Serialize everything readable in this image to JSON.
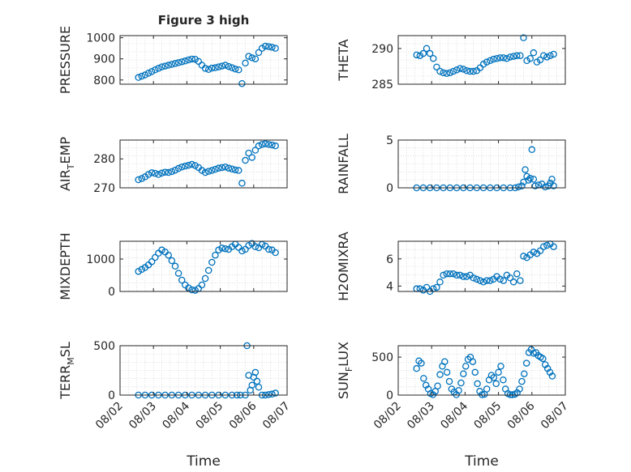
{
  "title": "Figure 3 high",
  "x_axis_label": "Time",
  "x_ticks": [
    "08/02",
    "08/03",
    "08/04",
    "08/05",
    "08/06",
    "08/07"
  ],
  "marker_color": "#0072BD",
  "chart_data": [
    {
      "type": "scatter",
      "ylabel": "PRESSURE",
      "ylim": [
        780,
        1010
      ],
      "yticks": [
        800,
        900,
        1000
      ],
      "x": [
        2.55,
        2.65,
        2.75,
        2.85,
        2.95,
        3.05,
        3.15,
        3.25,
        3.35,
        3.45,
        3.55,
        3.65,
        3.75,
        3.85,
        3.95,
        4.05,
        4.15,
        4.25,
        4.35,
        4.45,
        4.55,
        4.65,
        4.75,
        4.85,
        4.95,
        5.05,
        5.15,
        5.25,
        5.35,
        5.45,
        5.55,
        5.65,
        5.75,
        5.85,
        5.95,
        6.05,
        6.15,
        6.25,
        6.35,
        6.45,
        6.55,
        6.65
      ],
      "y": [
        812,
        818,
        824,
        832,
        840,
        848,
        855,
        862,
        866,
        870,
        874,
        878,
        882,
        886,
        890,
        895,
        899,
        898,
        888,
        870,
        855,
        850,
        856,
        858,
        862,
        866,
        870,
        864,
        858,
        852,
        848,
        783,
        880,
        912,
        905,
        900,
        930,
        950,
        960,
        958,
        955,
        950
      ]
    },
    {
      "type": "scatter",
      "ylabel": "THETA",
      "ylim": [
        285,
        291.8
      ],
      "yticks": [
        285,
        290
      ],
      "x": [
        2.55,
        2.65,
        2.75,
        2.85,
        2.95,
        3.05,
        3.15,
        3.25,
        3.35,
        3.45,
        3.55,
        3.65,
        3.75,
        3.85,
        3.95,
        4.05,
        4.15,
        4.25,
        4.35,
        4.45,
        4.55,
        4.65,
        4.75,
        4.85,
        4.95,
        5.05,
        5.15,
        5.25,
        5.35,
        5.45,
        5.55,
        5.65,
        5.75,
        5.85,
        5.95,
        6.05,
        6.15,
        6.25,
        6.35,
        6.45,
        6.55,
        6.65
      ],
      "y": [
        289.1,
        289.0,
        289.3,
        290.0,
        289.3,
        288.6,
        287.4,
        286.8,
        286.6,
        286.5,
        286.6,
        286.8,
        287.0,
        287.2,
        287.1,
        286.9,
        286.8,
        286.8,
        286.9,
        287.3,
        287.8,
        288.1,
        288.3,
        288.5,
        288.6,
        288.7,
        288.7,
        288.6,
        288.8,
        288.9,
        289.0,
        289.0,
        291.5,
        288.3,
        288.6,
        289.4,
        288.1,
        288.4,
        289.0,
        288.8,
        289.0,
        289.2
      ]
    },
    {
      "type": "scatter",
      "ylabel": "AIR_TEMP",
      "ylim": [
        270,
        286.5
      ],
      "yticks": [
        270,
        280
      ],
      "x": [
        2.55,
        2.65,
        2.75,
        2.85,
        2.95,
        3.05,
        3.15,
        3.25,
        3.35,
        3.45,
        3.55,
        3.65,
        3.75,
        3.85,
        3.95,
        4.05,
        4.15,
        4.25,
        4.35,
        4.45,
        4.55,
        4.65,
        4.75,
        4.85,
        4.95,
        5.05,
        5.15,
        5.25,
        5.35,
        5.45,
        5.55,
        5.65,
        5.75,
        5.85,
        5.95,
        6.05,
        6.15,
        6.25,
        6.35,
        6.45,
        6.55,
        6.65
      ],
      "y": [
        272.8,
        273.2,
        273.8,
        274.6,
        275.2,
        275.0,
        274.6,
        275.1,
        275.4,
        275.3,
        275.6,
        276.1,
        276.7,
        277.2,
        277.5,
        277.8,
        278.1,
        277.7,
        277.0,
        276.0,
        275.3,
        275.7,
        276.0,
        276.4,
        276.8,
        277.0,
        277.2,
        276.8,
        276.5,
        276.2,
        276.0,
        271.6,
        279.5,
        282.0,
        280.5,
        283.0,
        284.5,
        285.0,
        285.2,
        285.0,
        284.8,
        284.5
      ]
    },
    {
      "type": "scatter",
      "ylabel": "RAINFALL",
      "ylim": [
        0,
        5
      ],
      "yticks": [
        0,
        5
      ],
      "x": [
        2.55,
        2.75,
        2.95,
        3.15,
        3.35,
        3.55,
        3.75,
        3.95,
        4.15,
        4.35,
        4.55,
        4.75,
        4.95,
        5.15,
        5.35,
        5.5,
        5.6,
        5.7,
        5.75,
        5.8,
        5.85,
        5.9,
        5.95,
        6.0,
        6.05,
        6.1,
        6.2,
        6.3,
        6.4,
        6.5,
        6.55,
        6.6,
        6.65
      ],
      "y": [
        0,
        0,
        0,
        0,
        0,
        0,
        0,
        0,
        0,
        0,
        0,
        0,
        0,
        0,
        0,
        0,
        0.1,
        0.2,
        0.6,
        1.9,
        1.2,
        0.8,
        1.0,
        4.0,
        0.9,
        0.2,
        0.3,
        0.4,
        0.1,
        0.2,
        0.5,
        0.9,
        0.2
      ]
    },
    {
      "type": "scatter",
      "ylabel": "MIXDEPTH",
      "ylim": [
        0,
        1550
      ],
      "yticks": [
        0,
        1000
      ],
      "x": [
        2.55,
        2.65,
        2.75,
        2.85,
        2.95,
        3.05,
        3.15,
        3.25,
        3.35,
        3.45,
        3.55,
        3.65,
        3.75,
        3.85,
        3.95,
        4.05,
        4.15,
        4.25,
        4.35,
        4.45,
        4.55,
        4.65,
        4.75,
        4.85,
        4.95,
        5.05,
        5.15,
        5.25,
        5.35,
        5.45,
        5.55,
        5.65,
        5.75,
        5.85,
        5.95,
        6.05,
        6.15,
        6.25,
        6.35,
        6.45,
        6.55,
        6.65
      ],
      "y": [
        620,
        680,
        740,
        820,
        920,
        1050,
        1180,
        1280,
        1220,
        1120,
        950,
        780,
        560,
        350,
        200,
        110,
        50,
        35,
        90,
        200,
        400,
        650,
        900,
        1120,
        1280,
        1340,
        1320,
        1300,
        1380,
        1460,
        1360,
        1250,
        1300,
        1420,
        1480,
        1380,
        1350,
        1450,
        1400,
        1300,
        1280,
        1200
      ]
    },
    {
      "type": "scatter",
      "ylabel": "H2OMIXRA",
      "ylim": [
        3.6,
        7.3
      ],
      "yticks": [
        4,
        6
      ],
      "x": [
        2.55,
        2.65,
        2.75,
        2.85,
        2.95,
        3.05,
        3.15,
        3.25,
        3.35,
        3.45,
        3.55,
        3.65,
        3.75,
        3.85,
        3.95,
        4.05,
        4.15,
        4.25,
        4.35,
        4.45,
        4.55,
        4.65,
        4.75,
        4.85,
        4.95,
        5.05,
        5.15,
        5.25,
        5.35,
        5.45,
        5.55,
        5.65,
        5.75,
        5.85,
        5.95,
        6.05,
        6.15,
        6.25,
        6.35,
        6.45,
        6.55,
        6.65
      ],
      "y": [
        3.8,
        3.8,
        3.7,
        3.9,
        3.6,
        3.8,
        3.9,
        4.3,
        4.8,
        4.9,
        4.9,
        4.9,
        4.8,
        4.8,
        4.7,
        4.7,
        4.8,
        4.6,
        4.5,
        4.4,
        4.3,
        4.4,
        4.4,
        4.5,
        4.7,
        4.5,
        4.4,
        4.8,
        4.6,
        4.3,
        4.9,
        4.4,
        6.2,
        6.1,
        6.3,
        6.5,
        6.4,
        6.6,
        6.9,
        7.0,
        7.1,
        6.9
      ]
    },
    {
      "type": "scatter",
      "ylabel": "TERR_MSL",
      "ylim": [
        0,
        500
      ],
      "yticks": [
        0,
        500
      ],
      "x": [
        2.55,
        2.75,
        2.95,
        3.15,
        3.35,
        3.55,
        3.75,
        3.95,
        4.15,
        4.35,
        4.55,
        4.75,
        4.95,
        5.15,
        5.35,
        5.5,
        5.6,
        5.75,
        5.8,
        5.85,
        5.9,
        5.95,
        6.0,
        6.05,
        6.1,
        6.15,
        6.25,
        6.35,
        6.45,
        6.55,
        6.65
      ],
      "y": [
        0,
        0,
        0,
        0,
        0,
        0,
        0,
        0,
        0,
        0,
        0,
        0,
        0,
        0,
        0,
        0,
        0,
        0,
        500,
        200,
        50,
        100,
        180,
        230,
        140,
        80,
        0,
        0,
        5,
        10,
        20
      ]
    },
    {
      "type": "scatter",
      "ylabel": "SUN_FLUX",
      "ylim": [
        0,
        650
      ],
      "yticks": [
        0,
        500
      ],
      "x": [
        2.55,
        2.62,
        2.69,
        2.76,
        2.83,
        2.9,
        2.97,
        3.04,
        3.11,
        3.18,
        3.25,
        3.32,
        3.39,
        3.46,
        3.53,
        3.6,
        3.67,
        3.74,
        3.81,
        3.88,
        3.95,
        4.02,
        4.09,
        4.16,
        4.23,
        4.3,
        4.37,
        4.44,
        4.51,
        4.58,
        4.65,
        4.72,
        4.79,
        4.86,
        4.93,
        5.0,
        5.07,
        5.14,
        5.21,
        5.28,
        5.35,
        5.42,
        5.49,
        5.56,
        5.63,
        5.7,
        5.77,
        5.84,
        5.91,
        5.98,
        6.05,
        6.12,
        6.19,
        6.26,
        6.33,
        6.4,
        6.47,
        6.54,
        6.61
      ],
      "y": [
        350,
        450,
        420,
        220,
        130,
        80,
        20,
        5,
        50,
        120,
        270,
        380,
        440,
        300,
        180,
        80,
        40,
        5,
        60,
        160,
        280,
        380,
        470,
        500,
        440,
        300,
        150,
        50,
        5,
        10,
        80,
        200,
        260,
        230,
        150,
        300,
        380,
        200,
        80,
        20,
        5,
        5,
        10,
        30,
        80,
        180,
        280,
        420,
        560,
        600,
        550,
        560,
        520,
        500,
        480,
        400,
        350,
        300,
        250
      ]
    }
  ]
}
